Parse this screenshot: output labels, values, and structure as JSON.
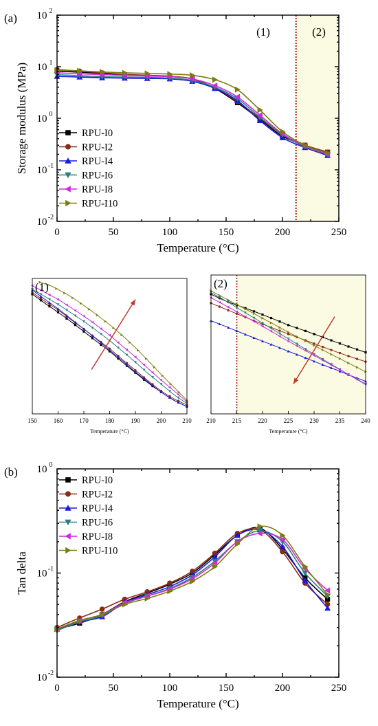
{
  "chart_data": [
    {
      "id": "a",
      "type": "line",
      "panel_label": "(a)",
      "title": "",
      "xlabel": "Temperature (°C)",
      "ylabel": "Storage modulus (MPa)",
      "xlim": [
        0,
        250
      ],
      "ylim": [
        0.01,
        100
      ],
      "yscale": "log",
      "xticks": [
        0,
        50,
        100,
        150,
        200,
        250
      ],
      "yticks": [
        0.01,
        0.1,
        1,
        10,
        100
      ],
      "yticklabels": [
        {
          "base": "10",
          "exp": "-2"
        },
        {
          "base": "10",
          "exp": "-1"
        },
        {
          "base": "10",
          "exp": "0"
        },
        {
          "base": "10",
          "exp": "1"
        },
        {
          "base": "10",
          "exp": "2"
        }
      ],
      "region_labels": [
        "(1)",
        "(2)"
      ],
      "divider_x": 212,
      "shade_from_x": 212,
      "shade_color": "#fbfbe3",
      "legend_placement": "lower-left",
      "grid": false,
      "series": [
        {
          "name": "RPU-I0",
          "color": "#000000",
          "marker": "square",
          "x": [
            0,
            20,
            40,
            60,
            80,
            100,
            120,
            140,
            160,
            180,
            200,
            220,
            240
          ],
          "y": [
            8.2,
            7.8,
            7.4,
            7.0,
            6.8,
            6.5,
            5.8,
            3.8,
            2.0,
            0.95,
            0.45,
            0.3,
            0.22
          ]
        },
        {
          "name": "RPU-I2",
          "color": "#8b2a14",
          "marker": "circle",
          "x": [
            0,
            20,
            40,
            60,
            80,
            100,
            120,
            140,
            160,
            180,
            200,
            220,
            240
          ],
          "y": [
            8.8,
            8.2,
            7.6,
            7.1,
            6.8,
            6.5,
            5.8,
            3.9,
            2.1,
            1.0,
            0.48,
            0.3,
            0.22
          ]
        },
        {
          "name": "RPU-I4",
          "color": "#1a1adb",
          "marker": "triangle-up",
          "x": [
            0,
            20,
            40,
            60,
            80,
            100,
            120,
            140,
            160,
            180,
            200,
            220,
            240
          ],
          "y": [
            6.5,
            6.3,
            6.1,
            6.0,
            5.9,
            5.8,
            5.2,
            3.8,
            2.2,
            0.9,
            0.42,
            0.27,
            0.19
          ]
        },
        {
          "name": "RPU-I6",
          "color": "#2a8080",
          "marker": "triangle-down",
          "x": [
            0,
            20,
            40,
            60,
            80,
            100,
            120,
            140,
            160,
            180,
            200,
            220,
            240
          ],
          "y": [
            7.0,
            6.7,
            6.4,
            6.3,
            6.2,
            6.0,
            5.4,
            4.0,
            2.4,
            1.05,
            0.48,
            0.28,
            0.2
          ]
        },
        {
          "name": "RPU-I8",
          "color": "#cc2adc",
          "marker": "triangle-left",
          "x": [
            0,
            20,
            40,
            60,
            80,
            100,
            120,
            140,
            160,
            180,
            200,
            220,
            240
          ],
          "y": [
            7.6,
            7.3,
            7.0,
            6.8,
            6.6,
            6.4,
            5.8,
            4.3,
            2.6,
            1.15,
            0.5,
            0.29,
            0.2
          ]
        },
        {
          "name": "RPU-I10",
          "color": "#7d7d0f",
          "marker": "triangle-right",
          "x": [
            0,
            20,
            40,
            60,
            80,
            100,
            120,
            140,
            160,
            180,
            200,
            220,
            240
          ],
          "y": [
            8.6,
            8.3,
            7.9,
            7.6,
            7.4,
            7.2,
            6.8,
            5.6,
            3.6,
            1.45,
            0.55,
            0.3,
            0.21
          ]
        }
      ]
    },
    {
      "id": "zoom1",
      "type": "line",
      "panel_label": "(1)",
      "xlabel": "Temperature (°C)",
      "xlim": [
        150,
        210
      ],
      "ylim": [
        0.25,
        4.0
      ],
      "yscale": "log",
      "xticks": [
        150,
        160,
        170,
        180,
        190,
        200,
        210
      ],
      "arrow": {
        "from": [
          173,
          0.62
        ],
        "to": [
          190,
          2.6
        ],
        "color": "#c0392b"
      },
      "series": [
        {
          "name": "RPU-I0",
          "x": [
            150,
            155,
            160,
            165,
            170,
            175,
            180,
            185,
            190,
            195,
            200,
            205,
            210
          ],
          "y": [
            2.9,
            2.4,
            2.0,
            1.65,
            1.35,
            1.1,
            0.9,
            0.72,
            0.58,
            0.47,
            0.39,
            0.33,
            0.29
          ]
        },
        {
          "name": "RPU-I2",
          "x": [
            150,
            155,
            160,
            165,
            170,
            175,
            180,
            185,
            190,
            195,
            200,
            205,
            210
          ],
          "y": [
            3.0,
            2.5,
            2.1,
            1.72,
            1.42,
            1.16,
            0.95,
            0.76,
            0.61,
            0.49,
            0.4,
            0.34,
            0.3
          ]
        },
        {
          "name": "RPU-I4",
          "x": [
            150,
            155,
            160,
            165,
            170,
            175,
            180,
            185,
            190,
            195,
            200,
            205,
            210
          ],
          "y": [
            3.15,
            2.6,
            2.15,
            1.75,
            1.42,
            1.15,
            0.92,
            0.74,
            0.59,
            0.48,
            0.39,
            0.33,
            0.29
          ]
        },
        {
          "name": "RPU-I6",
          "x": [
            150,
            155,
            160,
            165,
            170,
            175,
            180,
            185,
            190,
            195,
            200,
            205,
            210
          ],
          "y": [
            3.2,
            2.75,
            2.35,
            1.98,
            1.66,
            1.37,
            1.12,
            0.9,
            0.72,
            0.57,
            0.46,
            0.37,
            0.31
          ]
        },
        {
          "name": "RPU-I8",
          "x": [
            150,
            155,
            160,
            165,
            170,
            175,
            180,
            185,
            190,
            195,
            200,
            205,
            210
          ],
          "y": [
            3.45,
            3.0,
            2.6,
            2.2,
            1.85,
            1.53,
            1.25,
            1.0,
            0.8,
            0.63,
            0.5,
            0.4,
            0.32
          ]
        },
        {
          "name": "RPU-I10",
          "x": [
            153,
            157,
            161,
            165,
            170,
            175,
            180,
            185,
            190,
            195,
            200,
            205,
            210
          ],
          "y": [
            3.7,
            3.45,
            3.1,
            2.75,
            2.3,
            1.9,
            1.55,
            1.24,
            0.97,
            0.74,
            0.56,
            0.43,
            0.33
          ]
        }
      ]
    },
    {
      "id": "zoom2",
      "type": "line",
      "panel_label": "(2)",
      "xlabel": "Temperature (°C)",
      "xlim": [
        210,
        240
      ],
      "ylim": [
        0.16,
        0.45
      ],
      "yscale": "log",
      "xticks": [
        210,
        215,
        220,
        225,
        230,
        235,
        240
      ],
      "divider_x": 215,
      "shade_from_x": 215,
      "arrow": {
        "from": [
          234,
          0.33
        ],
        "to": [
          226,
          0.2
        ],
        "color": "#c0392b"
      },
      "series": [
        {
          "name": "RPU-I0",
          "x": [
            210,
            213,
            216,
            219,
            222,
            225,
            228,
            231,
            234,
            237,
            240
          ],
          "y": [
            0.39,
            0.37,
            0.355,
            0.34,
            0.325,
            0.31,
            0.298,
            0.286,
            0.274,
            0.263,
            0.253
          ]
        },
        {
          "name": "RPU-I2",
          "x": [
            210,
            213,
            216,
            219,
            222,
            225,
            228,
            231,
            234,
            237,
            240
          ],
          "y": [
            0.365,
            0.348,
            0.332,
            0.317,
            0.303,
            0.29,
            0.278,
            0.266,
            0.255,
            0.245,
            0.236
          ]
        },
        {
          "name": "RPU-I4",
          "x": [
            210,
            213,
            216,
            219,
            222,
            225,
            228,
            231,
            234,
            237,
            240
          ],
          "y": [
            0.32,
            0.306,
            0.292,
            0.279,
            0.267,
            0.255,
            0.244,
            0.233,
            0.223,
            0.213,
            0.204
          ]
        },
        {
          "name": "RPU-I6",
          "x": [
            210,
            213,
            216,
            219,
            222,
            225,
            228,
            231,
            234,
            237,
            240
          ],
          "y": [
            0.395,
            0.37,
            0.345,
            0.322,
            0.3,
            0.28,
            0.261,
            0.244,
            0.228,
            0.213,
            0.199
          ]
        },
        {
          "name": "RPU-I8",
          "x": [
            210,
            213,
            216,
            219,
            222,
            225,
            228,
            231,
            234,
            237,
            240
          ],
          "y": [
            0.38,
            0.357,
            0.335,
            0.314,
            0.294,
            0.275,
            0.258,
            0.242,
            0.227,
            0.213,
            0.2
          ]
        },
        {
          "name": "RPU-I10",
          "x": [
            210,
            213,
            216,
            219,
            222,
            225,
            228,
            231,
            234,
            237,
            240
          ],
          "y": [
            0.4,
            0.376,
            0.354,
            0.333,
            0.313,
            0.294,
            0.277,
            0.261,
            0.246,
            0.232,
            0.219
          ]
        }
      ]
    },
    {
      "id": "b",
      "type": "line",
      "panel_label": "(b)",
      "title": "",
      "xlabel": "Temperature (°C)",
      "ylabel": "Tan delta",
      "xlim": [
        0,
        250
      ],
      "ylim": [
        0.01,
        1
      ],
      "yscale": "log",
      "xticks": [
        0,
        50,
        100,
        150,
        200,
        250
      ],
      "yticks": [
        0.01,
        0.1,
        1
      ],
      "yticklabels": [
        {
          "base": "10",
          "exp": "-2"
        },
        {
          "base": "10",
          "exp": "-1"
        },
        {
          "base": "10",
          "exp": "0"
        }
      ],
      "legend_placement": "upper-left",
      "grid": false,
      "series": [
        {
          "name": "RPU-I0",
          "color": "#000000",
          "marker": "square",
          "x": [
            0,
            20,
            40,
            60,
            80,
            100,
            120,
            140,
            160,
            180,
            200,
            220,
            240
          ],
          "y": [
            0.029,
            0.033,
            0.04,
            0.053,
            0.064,
            0.078,
            0.1,
            0.15,
            0.23,
            0.27,
            0.17,
            0.09,
            0.056
          ]
        },
        {
          "name": "RPU-I2",
          "color": "#8b2a14",
          "marker": "circle",
          "x": [
            0,
            20,
            40,
            60,
            80,
            100,
            120,
            140,
            160,
            180,
            200,
            220,
            240
          ],
          "y": [
            0.03,
            0.037,
            0.045,
            0.056,
            0.066,
            0.08,
            0.104,
            0.155,
            0.24,
            0.26,
            0.16,
            0.08,
            0.05
          ]
        },
        {
          "name": "RPU-I4",
          "color": "#1a1adb",
          "marker": "triangle-up",
          "x": [
            0,
            20,
            40,
            60,
            80,
            100,
            120,
            140,
            160,
            180,
            200,
            220,
            240
          ],
          "y": [
            0.029,
            0.034,
            0.038,
            0.052,
            0.062,
            0.074,
            0.096,
            0.143,
            0.23,
            0.26,
            0.18,
            0.085,
            0.046
          ]
        },
        {
          "name": "RPU-I6",
          "color": "#2a8080",
          "marker": "triangle-down",
          "x": [
            0,
            20,
            40,
            60,
            80,
            100,
            120,
            140,
            160,
            180,
            200,
            220,
            240
          ],
          "y": [
            0.028,
            0.034,
            0.039,
            0.051,
            0.06,
            0.071,
            0.091,
            0.13,
            0.2,
            0.255,
            0.2,
            0.1,
            0.06
          ]
        },
        {
          "name": "RPU-I8",
          "color": "#cc2adc",
          "marker": "triangle-left",
          "x": [
            0,
            20,
            40,
            60,
            80,
            100,
            120,
            140,
            160,
            180,
            200,
            220,
            240
          ],
          "y": [
            0.029,
            0.035,
            0.04,
            0.052,
            0.06,
            0.07,
            0.088,
            0.125,
            0.2,
            0.24,
            0.21,
            0.11,
            0.068
          ]
        },
        {
          "name": "RPU-I10",
          "color": "#7d7d0f",
          "marker": "triangle-right",
          "x": [
            0,
            20,
            40,
            60,
            80,
            100,
            120,
            140,
            160,
            180,
            200,
            220,
            240
          ],
          "y": [
            0.029,
            0.035,
            0.04,
            0.05,
            0.057,
            0.067,
            0.083,
            0.115,
            0.19,
            0.28,
            0.23,
            0.115,
            0.062
          ]
        }
      ]
    }
  ]
}
